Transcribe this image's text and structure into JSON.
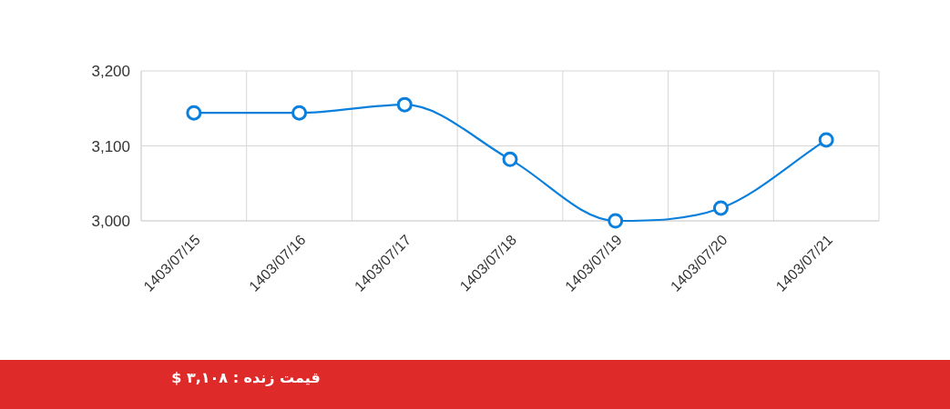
{
  "chart_data": {
    "type": "line",
    "categories": [
      "1403/07/15",
      "1403/07/16",
      "1403/07/17",
      "1403/07/18",
      "1403/07/19",
      "1403/07/20",
      "1403/07/21"
    ],
    "series": [
      {
        "color": "#0a7fdc",
        "values": [
          3144,
          3144,
          3155,
          3082,
          3000,
          3017,
          3108
        ]
      }
    ],
    "ylim": [
      3000,
      3200
    ],
    "yticks": [
      {
        "value": 3000,
        "label": "3,000"
      },
      {
        "value": 3100,
        "label": "3,100"
      },
      {
        "value": 3200,
        "label": "3,200"
      }
    ],
    "grid": true,
    "marker": "circle",
    "annotations": [
      "قیمت زنده : ۳,۱۰۸ $"
    ]
  }
}
